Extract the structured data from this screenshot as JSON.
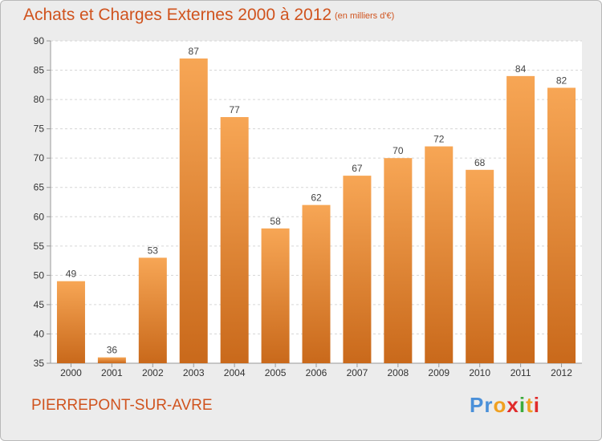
{
  "header": {
    "title": "Achats et Charges Externes 2000 à 2012",
    "subtitle": "(en milliers d'€)"
  },
  "footer": {
    "commune": "PIERREPONT-SUR-AVRE",
    "logo_letters": [
      "P",
      "r",
      "o",
      "x",
      "i",
      "t",
      "i"
    ],
    "logo_colors": [
      "#4a90d9",
      "#4a90d9",
      "#f0a020",
      "#e02b2b",
      "#3cab3c",
      "#f0a020",
      "#e02b2b"
    ]
  },
  "colors": {
    "bar_top": "#f7a655",
    "bar_bottom": "#c9691b",
    "accent": "#d0531e"
  },
  "chart_data": {
    "type": "bar",
    "title": "Achats et Charges Externes 2000 à 2012",
    "subtitle": "(en milliers d'€)",
    "categories": [
      "2000",
      "2001",
      "2002",
      "2003",
      "2004",
      "2005",
      "2006",
      "2007",
      "2008",
      "2009",
      "2010",
      "2011",
      "2012"
    ],
    "values": [
      49,
      36,
      53,
      87,
      77,
      58,
      62,
      67,
      70,
      72,
      68,
      84,
      82
    ],
    "ylim": [
      35,
      90
    ],
    "yticks": [
      35,
      40,
      45,
      50,
      55,
      60,
      65,
      70,
      75,
      80,
      85,
      90
    ],
    "grid": true,
    "xlabel": "",
    "ylabel": ""
  }
}
